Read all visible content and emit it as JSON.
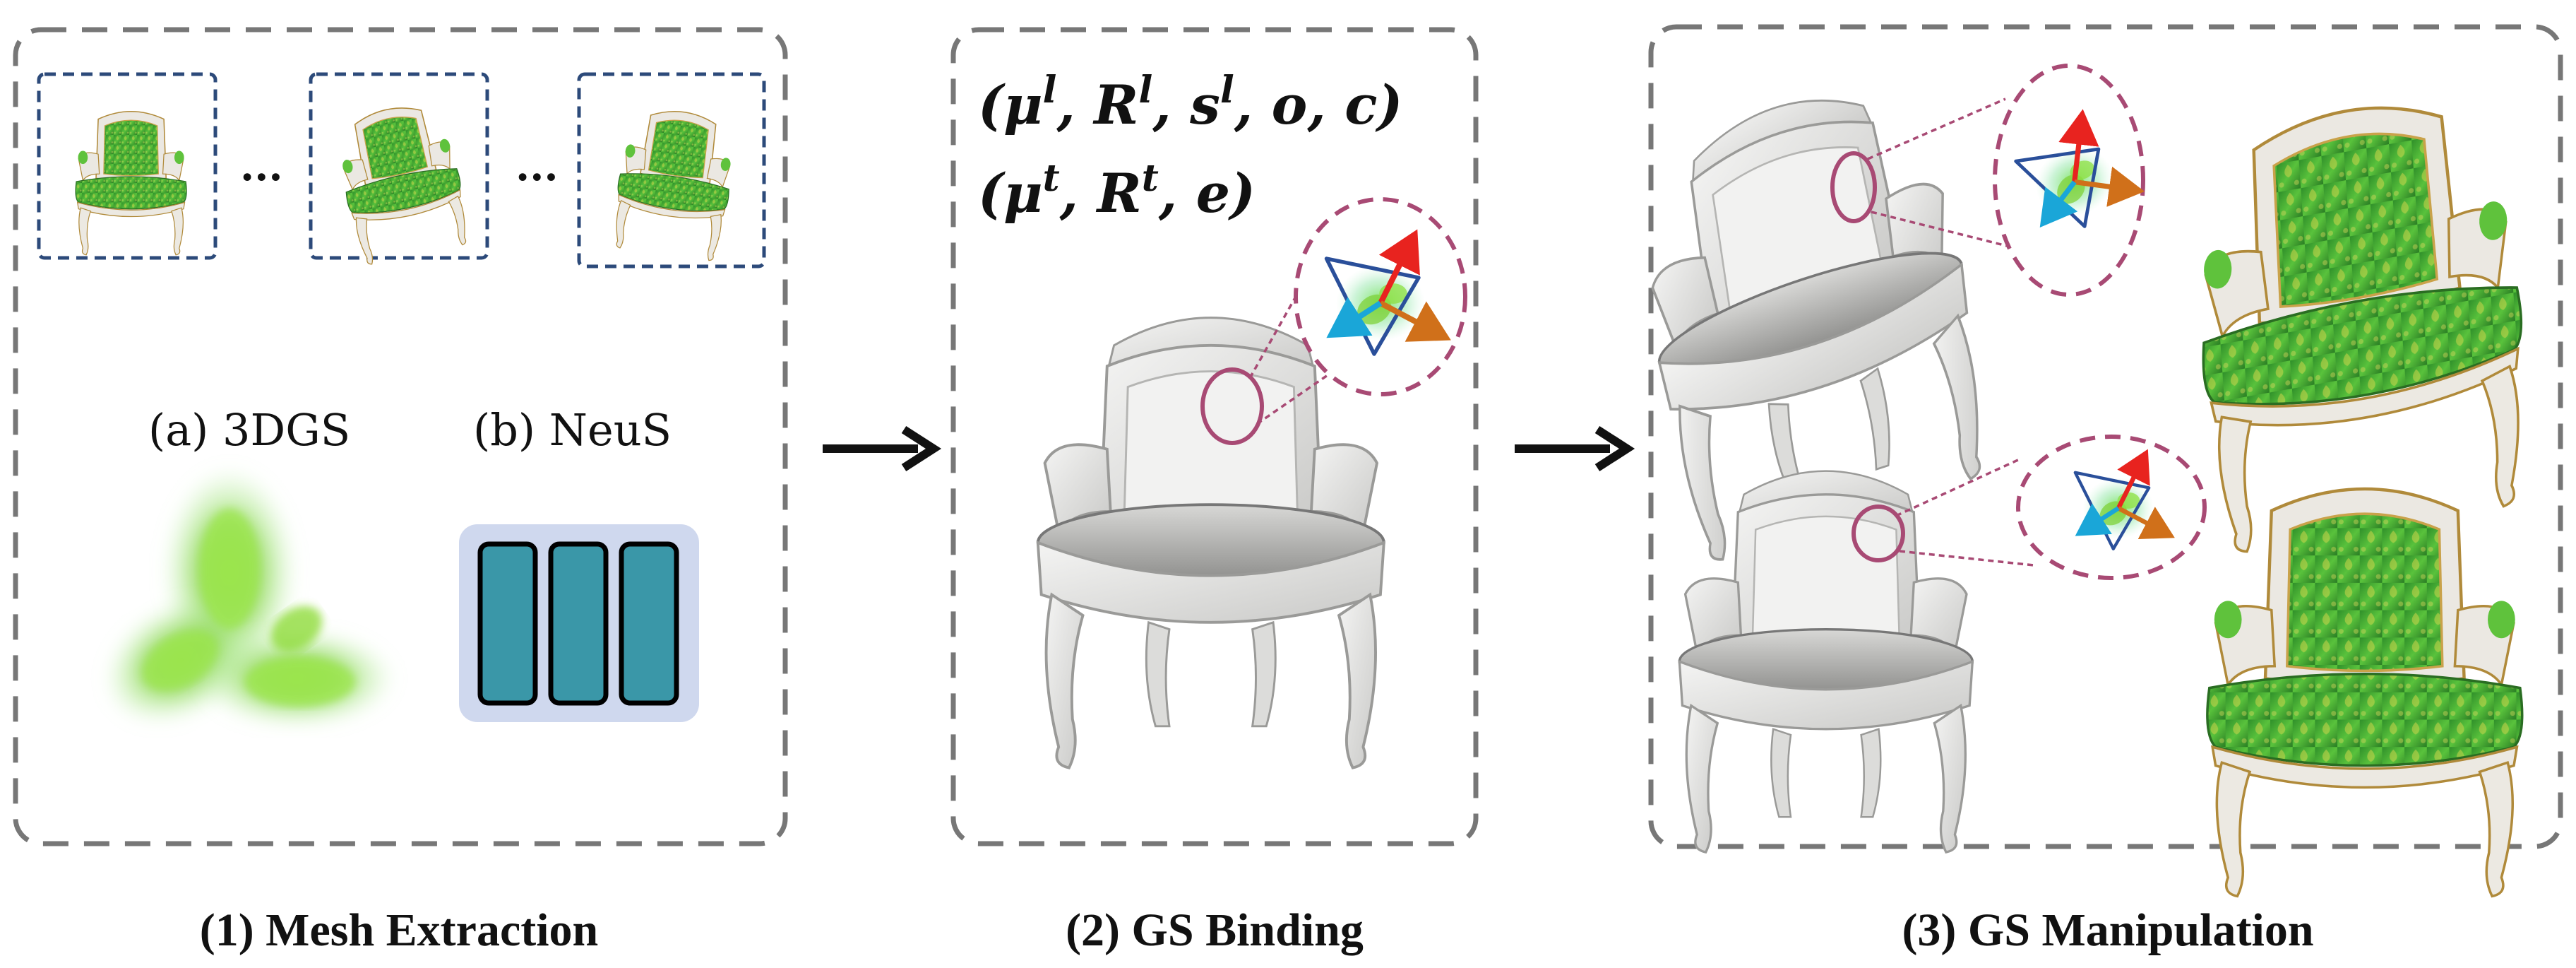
{
  "panels": {
    "mesh_extraction": {
      "caption": "(1) Mesh Extraction",
      "ellipsis": "...",
      "option_a": "(a) 3DGS",
      "option_b": "(b) NeuS"
    },
    "gs_binding": {
      "caption": "(2) GS Binding",
      "params_local": {
        "mu": "μ",
        "mu_sup": "l",
        "r": "R",
        "r_sup": "l",
        "s": "s",
        "s_sup": "l",
        "o": "o",
        "c": "c"
      },
      "params_triangle": {
        "mu": "μ",
        "mu_sup": "t",
        "r": "R",
        "r_sup": "t",
        "e": "e"
      }
    },
    "gs_manipulation": {
      "caption": "(3) GS Manipulation"
    }
  },
  "colors": {
    "panel_border": "#777777",
    "thumb_border": "#2c4a7a",
    "gaussian_green": "#7fd23a",
    "network_fill": "#cfd8ee",
    "network_block": "#3a97a8",
    "triangle_blue": "#2a4f9a",
    "arrow_red": "#e8231f",
    "arrow_orange": "#d0701a",
    "arrow_cyan": "#1aa6d8",
    "callout_pink": "#a84a74",
    "chair_frame": "#e8e8e6",
    "fabric_green": "#3ea82e",
    "gold": "#b08a3a"
  },
  "icons": [
    "chair-thumbnail",
    "gaussian-splats",
    "neural-network-blocks",
    "mesh-chair",
    "textured-chair",
    "triangle-gaussian-callout",
    "right-arrow"
  ]
}
